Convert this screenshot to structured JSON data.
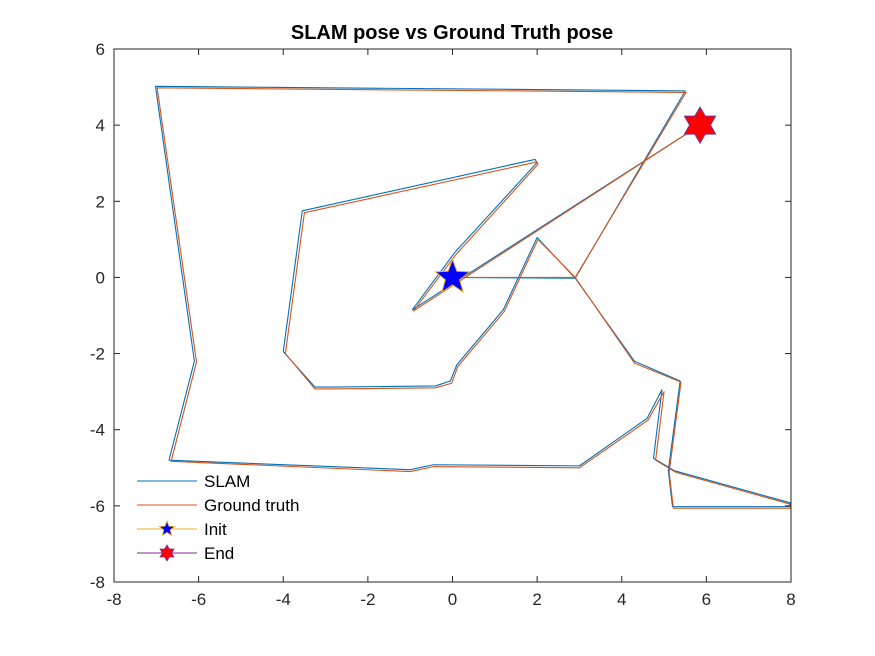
{
  "chart_data": {
    "type": "line",
    "title": "SLAM pose vs Ground Truth pose",
    "xlabel": "",
    "ylabel": "",
    "xlim": [
      -8,
      8
    ],
    "ylim": [
      -8,
      6
    ],
    "xticks": [
      -8,
      -6,
      -4,
      -2,
      0,
      2,
      4,
      6,
      8
    ],
    "yticks": [
      -8,
      -6,
      -4,
      -2,
      0,
      2,
      4,
      6
    ],
    "grid": false,
    "legend_position": "bottom-left",
    "series": [
      {
        "name": "SLAM",
        "color": "#0072BD",
        "points": [
          [
            0,
            0
          ],
          [
            2.9,
            -0.02
          ],
          [
            5.5,
            4.9
          ],
          [
            -7.02,
            5.02
          ],
          [
            -6.1,
            -2.2
          ],
          [
            -6.7,
            -4.8
          ],
          [
            -1.0,
            -5.05
          ],
          [
            -0.45,
            -4.92
          ],
          [
            3.0,
            -4.95
          ],
          [
            4.6,
            -3.7
          ],
          [
            4.95,
            -2.95
          ],
          [
            4.75,
            -4.75
          ],
          [
            5.25,
            -5.08
          ],
          [
            7.98,
            -5.92
          ],
          [
            7.95,
            -6.02
          ],
          [
            5.2,
            -6.02
          ],
          [
            5.1,
            -5.08
          ],
          [
            5.38,
            -2.72
          ],
          [
            4.3,
            -2.2
          ],
          [
            2.9,
            -0.02
          ],
          [
            2.0,
            1.05
          ],
          [
            1.2,
            -0.85
          ],
          [
            0.1,
            -2.3
          ],
          [
            -0.05,
            -2.72
          ],
          [
            -0.4,
            -2.85
          ],
          [
            -2.9,
            -2.88
          ],
          [
            -3.25,
            -2.88
          ],
          [
            -4.0,
            -1.95
          ],
          [
            -3.55,
            1.75
          ],
          [
            1.95,
            3.1
          ],
          [
            2.0,
            3.02
          ],
          [
            0.05,
            0.65
          ],
          [
            -0.95,
            -0.85
          ],
          [
            5.85,
            4.0
          ]
        ]
      },
      {
        "name": "Ground truth",
        "color": "#D95319",
        "points": [
          [
            0,
            0
          ],
          [
            2.9,
            0
          ],
          [
            5.52,
            4.86
          ],
          [
            -6.98,
            4.98
          ],
          [
            -6.05,
            -2.22
          ],
          [
            -6.65,
            -4.83
          ],
          [
            -1.0,
            -5.1
          ],
          [
            -0.45,
            -4.97
          ],
          [
            3.0,
            -5.0
          ],
          [
            4.62,
            -3.75
          ],
          [
            5.0,
            -3.0
          ],
          [
            4.8,
            -4.8
          ],
          [
            5.28,
            -5.12
          ],
          [
            8.0,
            -5.96
          ],
          [
            7.98,
            -6.06
          ],
          [
            5.22,
            -6.06
          ],
          [
            5.12,
            -5.12
          ],
          [
            5.4,
            -2.75
          ],
          [
            4.3,
            -2.25
          ],
          [
            2.9,
            0
          ],
          [
            2.02,
            1.0
          ],
          [
            1.22,
            -0.9
          ],
          [
            0.12,
            -2.35
          ],
          [
            -0.02,
            -2.78
          ],
          [
            -0.4,
            -2.9
          ],
          [
            -2.9,
            -2.93
          ],
          [
            -3.25,
            -2.93
          ],
          [
            -3.95,
            -2.0
          ],
          [
            -3.5,
            1.7
          ],
          [
            1.98,
            3.03
          ],
          [
            2.02,
            2.97
          ],
          [
            0.08,
            0.6
          ],
          [
            -0.92,
            -0.88
          ],
          [
            5.85,
            4.0
          ]
        ]
      }
    ],
    "markers": [
      {
        "name": "Init",
        "shape": "pentagram",
        "x": 0,
        "y": 0,
        "color": "#0000FF",
        "edge_color": "#EDB120"
      },
      {
        "name": "End",
        "shape": "hexagram",
        "x": 5.85,
        "y": 4.0,
        "color": "#FF0000",
        "edge_color": "#7E2F8E"
      }
    ],
    "legend": [
      {
        "label": "SLAM",
        "kind": "line",
        "color": "#0072BD"
      },
      {
        "label": "Ground truth",
        "kind": "line",
        "color": "#D95319"
      },
      {
        "label": "Init",
        "kind": "marker",
        "shape": "pentagram",
        "color": "#0000FF",
        "line_color": "#EDB120"
      },
      {
        "label": "End",
        "kind": "marker",
        "shape": "hexagram",
        "color": "#FF0000",
        "line_color": "#7E2F8E"
      }
    ]
  }
}
